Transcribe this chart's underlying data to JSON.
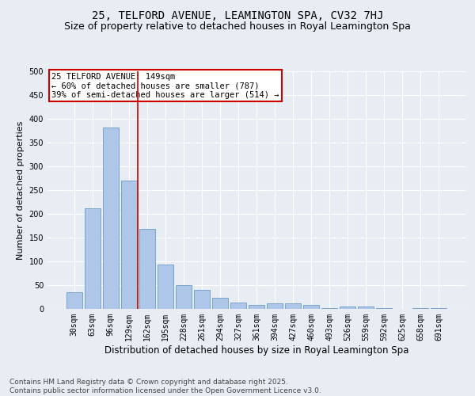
{
  "title": "25, TELFORD AVENUE, LEAMINGTON SPA, CV32 7HJ",
  "subtitle": "Size of property relative to detached houses in Royal Leamington Spa",
  "xlabel": "Distribution of detached houses by size in Royal Leamington Spa",
  "ylabel": "Number of detached properties",
  "categories": [
    "30sqm",
    "63sqm",
    "96sqm",
    "129sqm",
    "162sqm",
    "195sqm",
    "228sqm",
    "261sqm",
    "294sqm",
    "327sqm",
    "361sqm",
    "394sqm",
    "427sqm",
    "460sqm",
    "493sqm",
    "526sqm",
    "559sqm",
    "592sqm",
    "625sqm",
    "658sqm",
    "691sqm"
  ],
  "values": [
    35,
    211,
    381,
    270,
    168,
    93,
    50,
    40,
    24,
    13,
    8,
    11,
    11,
    8,
    2,
    5,
    5,
    1,
    0,
    2,
    2
  ],
  "bar_color": "#aec6e8",
  "bar_edge_color": "#5a8fc0",
  "vline_x": 3.5,
  "vline_color": "#cc0000",
  "annotation_text": "25 TELFORD AVENUE: 149sqm\n← 60% of detached houses are smaller (787)\n39% of semi-detached houses are larger (514) →",
  "annotation_box_color": "#ffffff",
  "annotation_box_edge_color": "#cc0000",
  "ylim": [
    0,
    500
  ],
  "yticks": [
    0,
    50,
    100,
    150,
    200,
    250,
    300,
    350,
    400,
    450,
    500
  ],
  "bg_color": "#e8edf4",
  "plot_bg_color": "#e8edf4",
  "grid_color": "#ffffff",
  "footer": "Contains HM Land Registry data © Crown copyright and database right 2025.\nContains public sector information licensed under the Open Government Licence v3.0.",
  "title_fontsize": 10,
  "subtitle_fontsize": 9,
  "xlabel_fontsize": 8.5,
  "ylabel_fontsize": 8,
  "tick_fontsize": 7,
  "annotation_fontsize": 7.5,
  "footer_fontsize": 6.5
}
